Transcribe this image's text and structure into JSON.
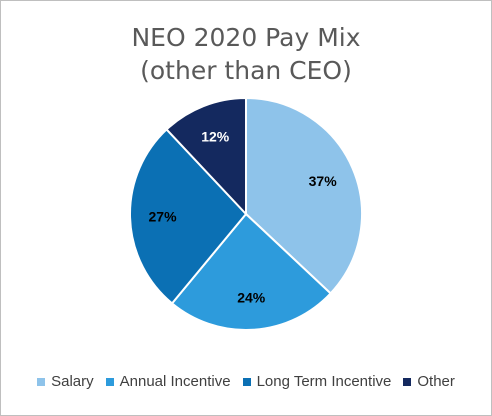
{
  "chart_data": {
    "type": "pie",
    "title_lines": [
      "NEO 2020 Pay Mix",
      "(other than CEO)"
    ],
    "categories": [
      "Salary",
      "Annual Incentive",
      "Long Term Incentive",
      "Other"
    ],
    "values": [
      37,
      24,
      27,
      12
    ],
    "labels": [
      "37%",
      "24%",
      "27%",
      "12%"
    ],
    "colors": [
      "#8EC3EA",
      "#2D9BDC",
      "#0B70B4",
      "#14295F"
    ],
    "label_colors": [
      "#000000",
      "#000000",
      "#000000",
      "#ffffff"
    ],
    "legend_position": "bottom"
  }
}
